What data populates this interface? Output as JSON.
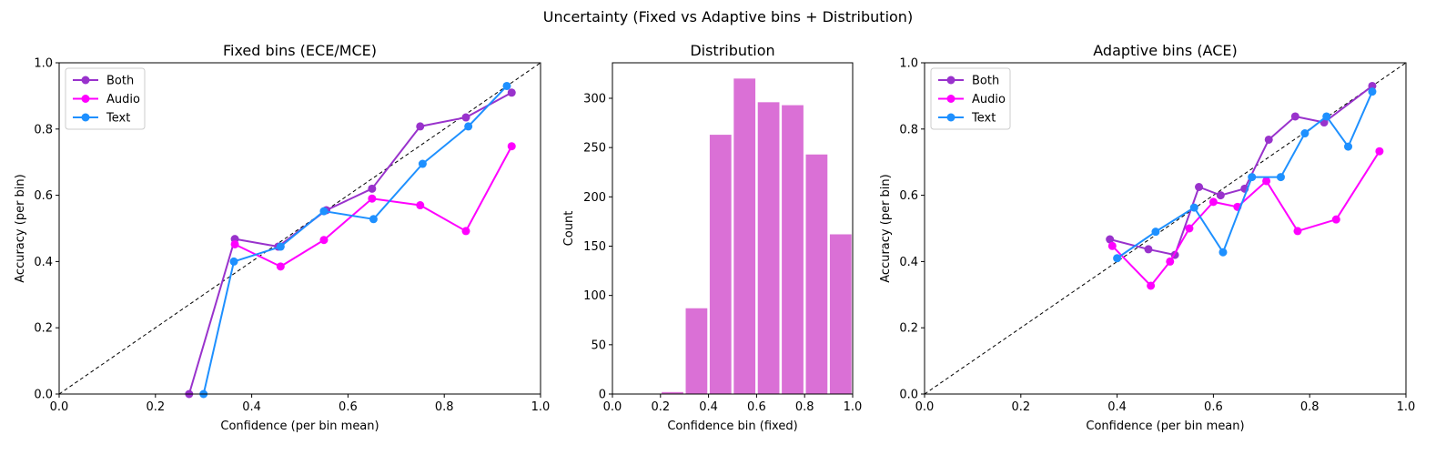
{
  "figure": {
    "suptitle": "Uncertainty (Fixed vs Adaptive bins + Distribution)"
  },
  "chart_data": [
    {
      "type": "line",
      "title": "Fixed bins (ECE/MCE)",
      "xlabel": "Confidence (per bin mean)",
      "ylabel": "Accuracy (per bin)",
      "xlim": [
        0,
        1
      ],
      "ylim": [
        0,
        1
      ],
      "xticks": [
        "0.0",
        "0.2",
        "0.4",
        "0.6",
        "0.8",
        "1.0"
      ],
      "yticks": [
        "0.0",
        "0.2",
        "0.4",
        "0.6",
        "0.8",
        "1.0"
      ],
      "grid": false,
      "legend": "upper-left",
      "reference_line": "diagonal",
      "series": [
        {
          "name": "Both",
          "color": "#9932CC",
          "x": [
            0.27,
            0.365,
            0.455,
            0.555,
            0.65,
            0.75,
            0.845,
            0.94
          ],
          "y": [
            0.0,
            0.468,
            0.445,
            0.555,
            0.62,
            0.808,
            0.835,
            0.91
          ]
        },
        {
          "name": "Audio",
          "color": "#FF00FF",
          "x": [
            0.365,
            0.46,
            0.55,
            0.65,
            0.75,
            0.845,
            0.94
          ],
          "y": [
            0.452,
            0.385,
            0.465,
            0.59,
            0.57,
            0.492,
            0.748
          ]
        },
        {
          "name": "Text",
          "color": "#1E90FF",
          "x": [
            0.3,
            0.363,
            0.46,
            0.55,
            0.653,
            0.755,
            0.85,
            0.93
          ],
          "y": [
            0.0,
            0.4,
            0.445,
            0.552,
            0.528,
            0.695,
            0.808,
            0.93
          ]
        }
      ]
    },
    {
      "type": "bar",
      "title": "Distribution",
      "xlabel": "Confidence bin (fixed)",
      "ylabel": "Count",
      "xlim": [
        0,
        1
      ],
      "ylim": [
        0,
        336
      ],
      "xticks": [
        "0.0",
        "0.2",
        "0.4",
        "0.6",
        "0.8",
        "1.0"
      ],
      "yticks": [
        "0",
        "50",
        "100",
        "150",
        "200",
        "250",
        "300"
      ],
      "color": "#DA70D6",
      "bin_edges": [
        0.2,
        0.3,
        0.4,
        0.5,
        0.6,
        0.7,
        0.8,
        0.9,
        1.0
      ],
      "values": [
        2,
        87,
        263,
        320,
        296,
        293,
        243,
        162
      ]
    },
    {
      "type": "line",
      "title": "Adaptive bins (ACE)",
      "xlabel": "Confidence (per bin mean)",
      "ylabel": "Accuracy (per bin)",
      "xlim": [
        0,
        1
      ],
      "ylim": [
        0,
        1
      ],
      "xticks": [
        "0.0",
        "0.2",
        "0.4",
        "0.6",
        "0.8",
        "1.0"
      ],
      "yticks": [
        "0.0",
        "0.2",
        "0.4",
        "0.6",
        "0.8",
        "1.0"
      ],
      "grid": false,
      "legend": "upper-left",
      "reference_line": "diagonal",
      "series": [
        {
          "name": "Both",
          "color": "#9932CC",
          "x": [
            0.385,
            0.465,
            0.52,
            0.57,
            0.615,
            0.665,
            0.715,
            0.77,
            0.83,
            0.93
          ],
          "y": [
            0.467,
            0.437,
            0.42,
            0.625,
            0.6,
            0.62,
            0.768,
            0.838,
            0.82,
            0.93
          ]
        },
        {
          "name": "Audio",
          "color": "#FF00FF",
          "x": [
            0.39,
            0.47,
            0.51,
            0.55,
            0.6,
            0.65,
            0.71,
            0.775,
            0.855,
            0.945
          ],
          "y": [
            0.447,
            0.327,
            0.4,
            0.5,
            0.58,
            0.565,
            0.643,
            0.492,
            0.527,
            0.733
          ]
        },
        {
          "name": "Text",
          "color": "#1E90FF",
          "x": [
            0.4,
            0.48,
            0.56,
            0.62,
            0.68,
            0.74,
            0.79,
            0.835,
            0.88,
            0.93
          ],
          "y": [
            0.41,
            0.49,
            0.563,
            0.428,
            0.655,
            0.655,
            0.787,
            0.838,
            0.747,
            0.913
          ]
        }
      ]
    }
  ]
}
